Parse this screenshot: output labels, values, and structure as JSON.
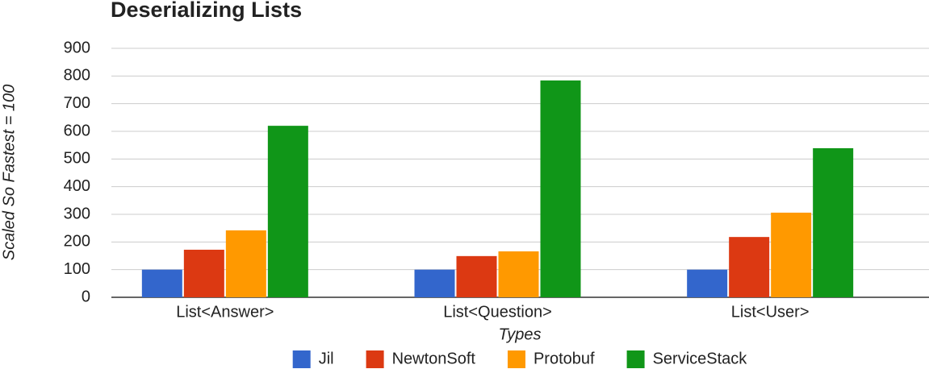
{
  "chart_data": {
    "type": "bar",
    "title": "Deserializing Lists",
    "x_label": "Types",
    "y_label": "Scaled So Fastest = 100",
    "categories": [
      "List<Answer>",
      "List<Question>",
      "List<User>"
    ],
    "series": [
      {
        "name": "Jil",
        "color": "#3366cc",
        "values": [
          100,
          100,
          100
        ]
      },
      {
        "name": "NewtonSoft",
        "color": "#dc3912",
        "values": [
          172,
          149,
          218
        ]
      },
      {
        "name": "Protobuf",
        "color": "#ff9900",
        "values": [
          242,
          166,
          306
        ]
      },
      {
        "name": "ServiceStack",
        "color": "#109618",
        "values": [
          620,
          784,
          539
        ]
      }
    ],
    "ylim": [
      0,
      900
    ],
    "yticks": [
      0,
      100,
      200,
      300,
      400,
      500,
      600,
      700,
      800,
      900
    ],
    "grid": true,
    "legend": "bottom"
  }
}
